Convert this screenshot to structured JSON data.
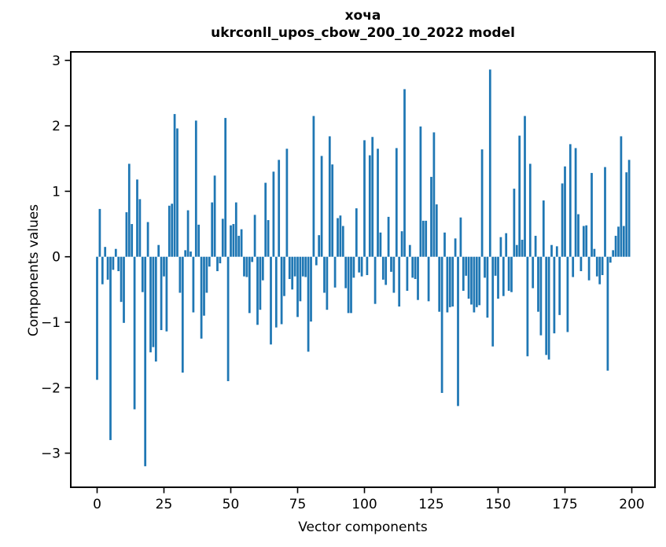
{
  "figure": {
    "background": "#ffffff",
    "title_line1": "хоча",
    "title_line2": "ukrconll_upos_cbow_200_10_2022 model",
    "xlabel": "Vector components",
    "ylabel": "Components values",
    "bar_color": "#1f77b4",
    "axis_color": "#000000",
    "x_tick_labels": [
      "0",
      "25",
      "50",
      "75",
      "100",
      "125",
      "150",
      "175",
      "200"
    ],
    "y_tick_labels": [
      "3",
      "2",
      "1",
      "0",
      "−1",
      "−2",
      "−3"
    ]
  },
  "chart_data": {
    "type": "bar",
    "title": "хоча\nukrconll_upos_cbow_200_10_2022 model",
    "xlabel": "Vector components",
    "ylabel": "Components values",
    "legend": null,
    "grid": false,
    "x_ticks": [
      0,
      25,
      50,
      75,
      100,
      125,
      150,
      175,
      200
    ],
    "y_ticks": [
      3,
      2,
      1,
      0,
      -1,
      -2,
      -3
    ],
    "xlim": [
      -9.9,
      208.9
    ],
    "ylim": [
      -3.52,
      3.13
    ],
    "n_components": 200,
    "x": "component index 0..199",
    "values": [
      -1.88,
      0.73,
      -0.42,
      0.15,
      -0.35,
      -2.8,
      -0.2,
      0.12,
      -0.22,
      -0.69,
      -1.01,
      0.68,
      1.42,
      0.5,
      -2.33,
      1.18,
      0.88,
      -0.54,
      -3.2,
      0.53,
      -1.46,
      -1.38,
      -1.6,
      0.18,
      -1.12,
      -0.3,
      -1.14,
      0.78,
      0.81,
      2.18,
      1.96,
      -0.55,
      -1.77,
      0.1,
      0.71,
      0.08,
      -0.85,
      2.08,
      0.49,
      -1.25,
      -0.9,
      -0.55,
      -0.15,
      0.83,
      1.24,
      -0.22,
      -0.1,
      0.58,
      2.12,
      -1.9,
      0.48,
      0.5,
      0.83,
      0.32,
      0.42,
      -0.3,
      -0.31,
      -0.86,
      -0.08,
      0.64,
      -1.04,
      -0.81,
      -0.36,
      1.13,
      0.56,
      -1.34,
      1.3,
      -1.08,
      1.48,
      -1.03,
      -0.6,
      1.65,
      -0.34,
      -0.5,
      -0.3,
      -0.92,
      -0.68,
      -0.3,
      -0.31,
      -1.45,
      -0.99,
      2.15,
      -0.13,
      0.33,
      1.54,
      -0.55,
      -0.81,
      1.84,
      1.41,
      -0.47,
      0.59,
      0.63,
      0.47,
      -0.48,
      -0.86,
      -0.86,
      -0.32,
      0.74,
      -0.24,
      -0.3,
      1.78,
      -0.28,
      1.55,
      1.83,
      -0.72,
      1.65,
      0.37,
      -0.35,
      -0.43,
      0.61,
      -0.23,
      -0.55,
      1.66,
      -0.76,
      0.39,
      2.56,
      -0.52,
      0.18,
      -0.32,
      -0.34,
      -0.66,
      1.99,
      0.55,
      0.55,
      -0.68,
      1.22,
      1.9,
      0.8,
      -0.84,
      -2.08,
      0.37,
      -0.85,
      -0.77,
      -0.76,
      0.28,
      -2.28,
      0.6,
      -0.52,
      -0.29,
      -0.64,
      -0.73,
      -0.85,
      -0.77,
      -0.74,
      1.64,
      -0.32,
      -0.93,
      2.86,
      -1.37,
      -0.29,
      -0.64,
      0.3,
      -0.6,
      0.36,
      -0.52,
      -0.54,
      1.04,
      0.18,
      1.85,
      0.26,
      2.15,
      -1.52,
      1.42,
      -0.48,
      0.32,
      -0.84,
      -1.2,
      0.86,
      -1.5,
      -1.57,
      0.18,
      -1.17,
      0.16,
      -0.89,
      1.12,
      1.38,
      -1.15,
      1.72,
      -0.31,
      1.66,
      0.65,
      -0.22,
      0.47,
      0.48,
      -0.36,
      1.28,
      0.12,
      -0.3,
      -0.42,
      -0.28,
      1.37,
      -1.74,
      -0.09,
      0.1,
      0.32,
      0.46,
      1.84,
      0.47,
      1.29,
      1.48
    ]
  }
}
